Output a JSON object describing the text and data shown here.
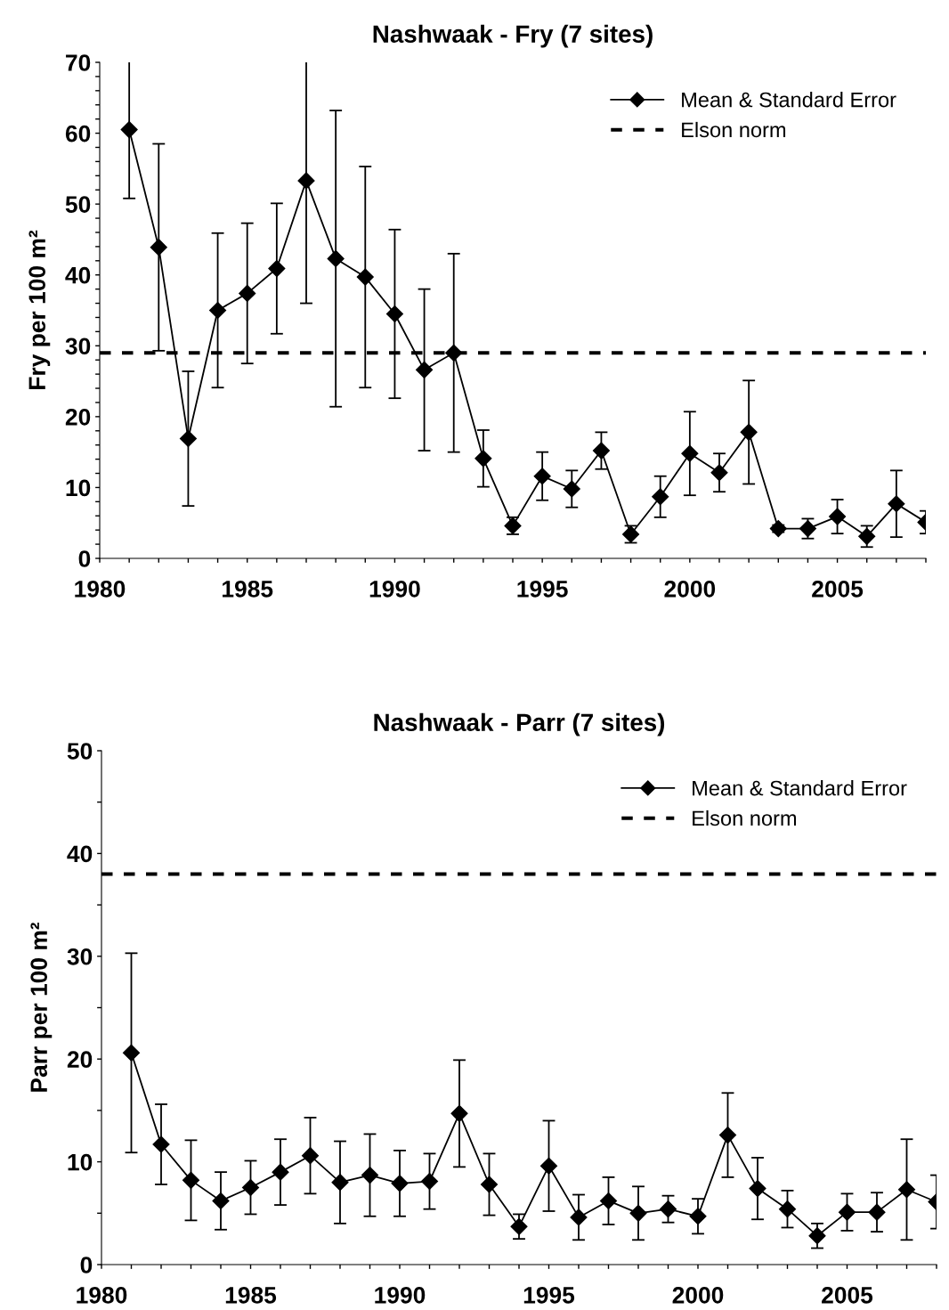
{
  "chart_data": [
    {
      "type": "line",
      "title": "Nashwaak - Fry (7 sites)",
      "ylabel": "Fry per 100 m²",
      "x": [
        1981,
        1982,
        1983,
        1984,
        1985,
        1986,
        1987,
        1988,
        1989,
        1990,
        1991,
        1992,
        1993,
        1994,
        1995,
        1996,
        1997,
        1998,
        1999,
        2000,
        2001,
        2002,
        2003,
        2004,
        2005,
        2006,
        2007,
        2008
      ],
      "series": [
        {
          "name": "Mean & Standard Error",
          "color": "#000000",
          "values": [
            60.5,
            43.9,
            16.9,
            35.0,
            37.4,
            40.9,
            53.3,
            42.3,
            39.7,
            34.5,
            26.6,
            29.0,
            14.1,
            4.6,
            11.6,
            9.8,
            15.2,
            3.4,
            8.7,
            14.8,
            12.1,
            17.8,
            4.2,
            4.2,
            5.9,
            3.1,
            7.7,
            5.1
          ],
          "errors": [
            9.7,
            14.6,
            9.5,
            10.9,
            9.9,
            9.2,
            17.3,
            20.9,
            15.6,
            11.9,
            11.4,
            14.0,
            4.0,
            1.2,
            3.4,
            2.6,
            2.6,
            1.2,
            2.9,
            5.9,
            2.7,
            7.3,
            0.5,
            1.4,
            2.4,
            1.5,
            4.7,
            1.6
          ]
        }
      ],
      "ref_lines": [
        {
          "axis": "y",
          "value": 29,
          "label": "Elson norm",
          "color": "#000000",
          "line_style": "dashed"
        }
      ],
      "xlim": [
        1980,
        2008
      ],
      "xticks": [
        1980,
        {
          "value": 1981,
          "label": null
        },
        {
          "value": 1982,
          "label": null
        },
        {
          "value": 1983,
          "label": null
        },
        {
          "value": 1984,
          "label": null
        },
        1985,
        {
          "value": 1986,
          "label": null
        },
        {
          "value": 1987,
          "label": null
        },
        {
          "value": 1988,
          "label": null
        },
        {
          "value": 1989,
          "label": null
        },
        1990,
        {
          "value": 1991,
          "label": null
        },
        {
          "value": 1992,
          "label": null
        },
        {
          "value": 1993,
          "label": null
        },
        {
          "value": 1994,
          "label": null
        },
        1995,
        {
          "value": 1996,
          "label": null
        },
        {
          "value": 1997,
          "label": null
        },
        {
          "value": 1998,
          "label": null
        },
        {
          "value": 1999,
          "label": null
        },
        2000,
        {
          "value": 2001,
          "label": null
        },
        {
          "value": 2002,
          "label": null
        },
        {
          "value": 2003,
          "label": null
        },
        {
          "value": 2004,
          "label": null
        },
        2005,
        {
          "value": 2006,
          "label": null
        },
        {
          "value": 2007,
          "label": null
        },
        {
          "value": 2008,
          "label": null
        }
      ],
      "ylim": [
        0,
        70
      ],
      "yticks": [
        0,
        {
          "value": 2,
          "label": null
        },
        {
          "value": 4,
          "label": null
        },
        {
          "value": 6,
          "label": null
        },
        {
          "value": 8,
          "label": null
        },
        10,
        {
          "value": 12,
          "label": null
        },
        {
          "value": 14,
          "label": null
        },
        {
          "value": 16,
          "label": null
        },
        {
          "value": 18,
          "label": null
        },
        20,
        {
          "value": 22,
          "label": null
        },
        {
          "value": 24,
          "label": null
        },
        {
          "value": 26,
          "label": null
        },
        {
          "value": 28,
          "label": null
        },
        30,
        {
          "value": 32,
          "label": null
        },
        {
          "value": 34,
          "label": null
        },
        {
          "value": 36,
          "label": null
        },
        {
          "value": 38,
          "label": null
        },
        40,
        {
          "value": 42,
          "label": null
        },
        {
          "value": 44,
          "label": null
        },
        {
          "value": 46,
          "label": null
        },
        {
          "value": 48,
          "label": null
        },
        50,
        {
          "value": 52,
          "label": null
        },
        {
          "value": 54,
          "label": null
        },
        {
          "value": 56,
          "label": null
        },
        {
          "value": 58,
          "label": null
        },
        60,
        {
          "value": 62,
          "label": null
        },
        {
          "value": 64,
          "label": null
        },
        {
          "value": 66,
          "label": null
        },
        {
          "value": 68,
          "label": null
        },
        70
      ],
      "marker": "diamond",
      "line_style": "solid",
      "legend": "top right",
      "grid": false
    },
    {
      "type": "line",
      "title": "Nashwaak - Parr (7 sites)",
      "ylabel": "Parr per 100 m²",
      "x": [
        1981,
        1982,
        1983,
        1984,
        1985,
        1986,
        1987,
        1988,
        1989,
        1990,
        1991,
        1992,
        1993,
        1994,
        1995,
        1996,
        1997,
        1998,
        1999,
        2000,
        2001,
        2002,
        2003,
        2004,
        2005,
        2006,
        2007,
        2008
      ],
      "series": [
        {
          "name": "Mean & Standard Error",
          "color": "#000000",
          "values": [
            20.6,
            11.7,
            8.2,
            6.2,
            7.5,
            9.0,
            10.6,
            8.0,
            8.7,
            7.9,
            8.1,
            14.7,
            7.8,
            3.7,
            9.6,
            4.6,
            6.2,
            5.0,
            5.4,
            4.7,
            12.6,
            7.4,
            5.4,
            2.8,
            5.1,
            5.1,
            7.3,
            6.1
          ],
          "errors": [
            9.7,
            3.9,
            3.9,
            2.8,
            2.6,
            3.2,
            3.7,
            4.0,
            4.0,
            3.2,
            2.7,
            5.2,
            3.0,
            1.2,
            4.4,
            2.2,
            2.3,
            2.6,
            1.3,
            1.7,
            4.1,
            3.0,
            1.8,
            1.2,
            1.8,
            1.9,
            4.9,
            2.6
          ]
        }
      ],
      "ref_lines": [
        {
          "axis": "y",
          "value": 38,
          "label": "Elson norm",
          "color": "#000000",
          "line_style": "dashed"
        }
      ],
      "xlim": [
        1980,
        2008
      ],
      "xticks": [
        1980,
        {
          "value": 1981,
          "label": null
        },
        {
          "value": 1982,
          "label": null
        },
        {
          "value": 1983,
          "label": null
        },
        {
          "value": 1984,
          "label": null
        },
        1985,
        {
          "value": 1986,
          "label": null
        },
        {
          "value": 1987,
          "label": null
        },
        {
          "value": 1988,
          "label": null
        },
        {
          "value": 1989,
          "label": null
        },
        1990,
        {
          "value": 1991,
          "label": null
        },
        {
          "value": 1992,
          "label": null
        },
        {
          "value": 1993,
          "label": null
        },
        {
          "value": 1994,
          "label": null
        },
        1995,
        {
          "value": 1996,
          "label": null
        },
        {
          "value": 1997,
          "label": null
        },
        {
          "value": 1998,
          "label": null
        },
        {
          "value": 1999,
          "label": null
        },
        2000,
        {
          "value": 2001,
          "label": null
        },
        {
          "value": 2002,
          "label": null
        },
        {
          "value": 2003,
          "label": null
        },
        {
          "value": 2004,
          "label": null
        },
        2005,
        {
          "value": 2006,
          "label": null
        },
        {
          "value": 2007,
          "label": null
        },
        {
          "value": 2008,
          "label": null
        }
      ],
      "ylim": [
        0,
        50
      ],
      "yticks": [
        0,
        {
          "value": 5,
          "label": null
        },
        10,
        {
          "value": 15,
          "label": null
        },
        20,
        {
          "value": 25,
          "label": null
        },
        30,
        {
          "value": 35,
          "label": null
        },
        40,
        {
          "value": 45,
          "label": null
        },
        50
      ],
      "marker": "diamond",
      "line_style": "solid",
      "legend": "top right",
      "grid": false
    }
  ]
}
